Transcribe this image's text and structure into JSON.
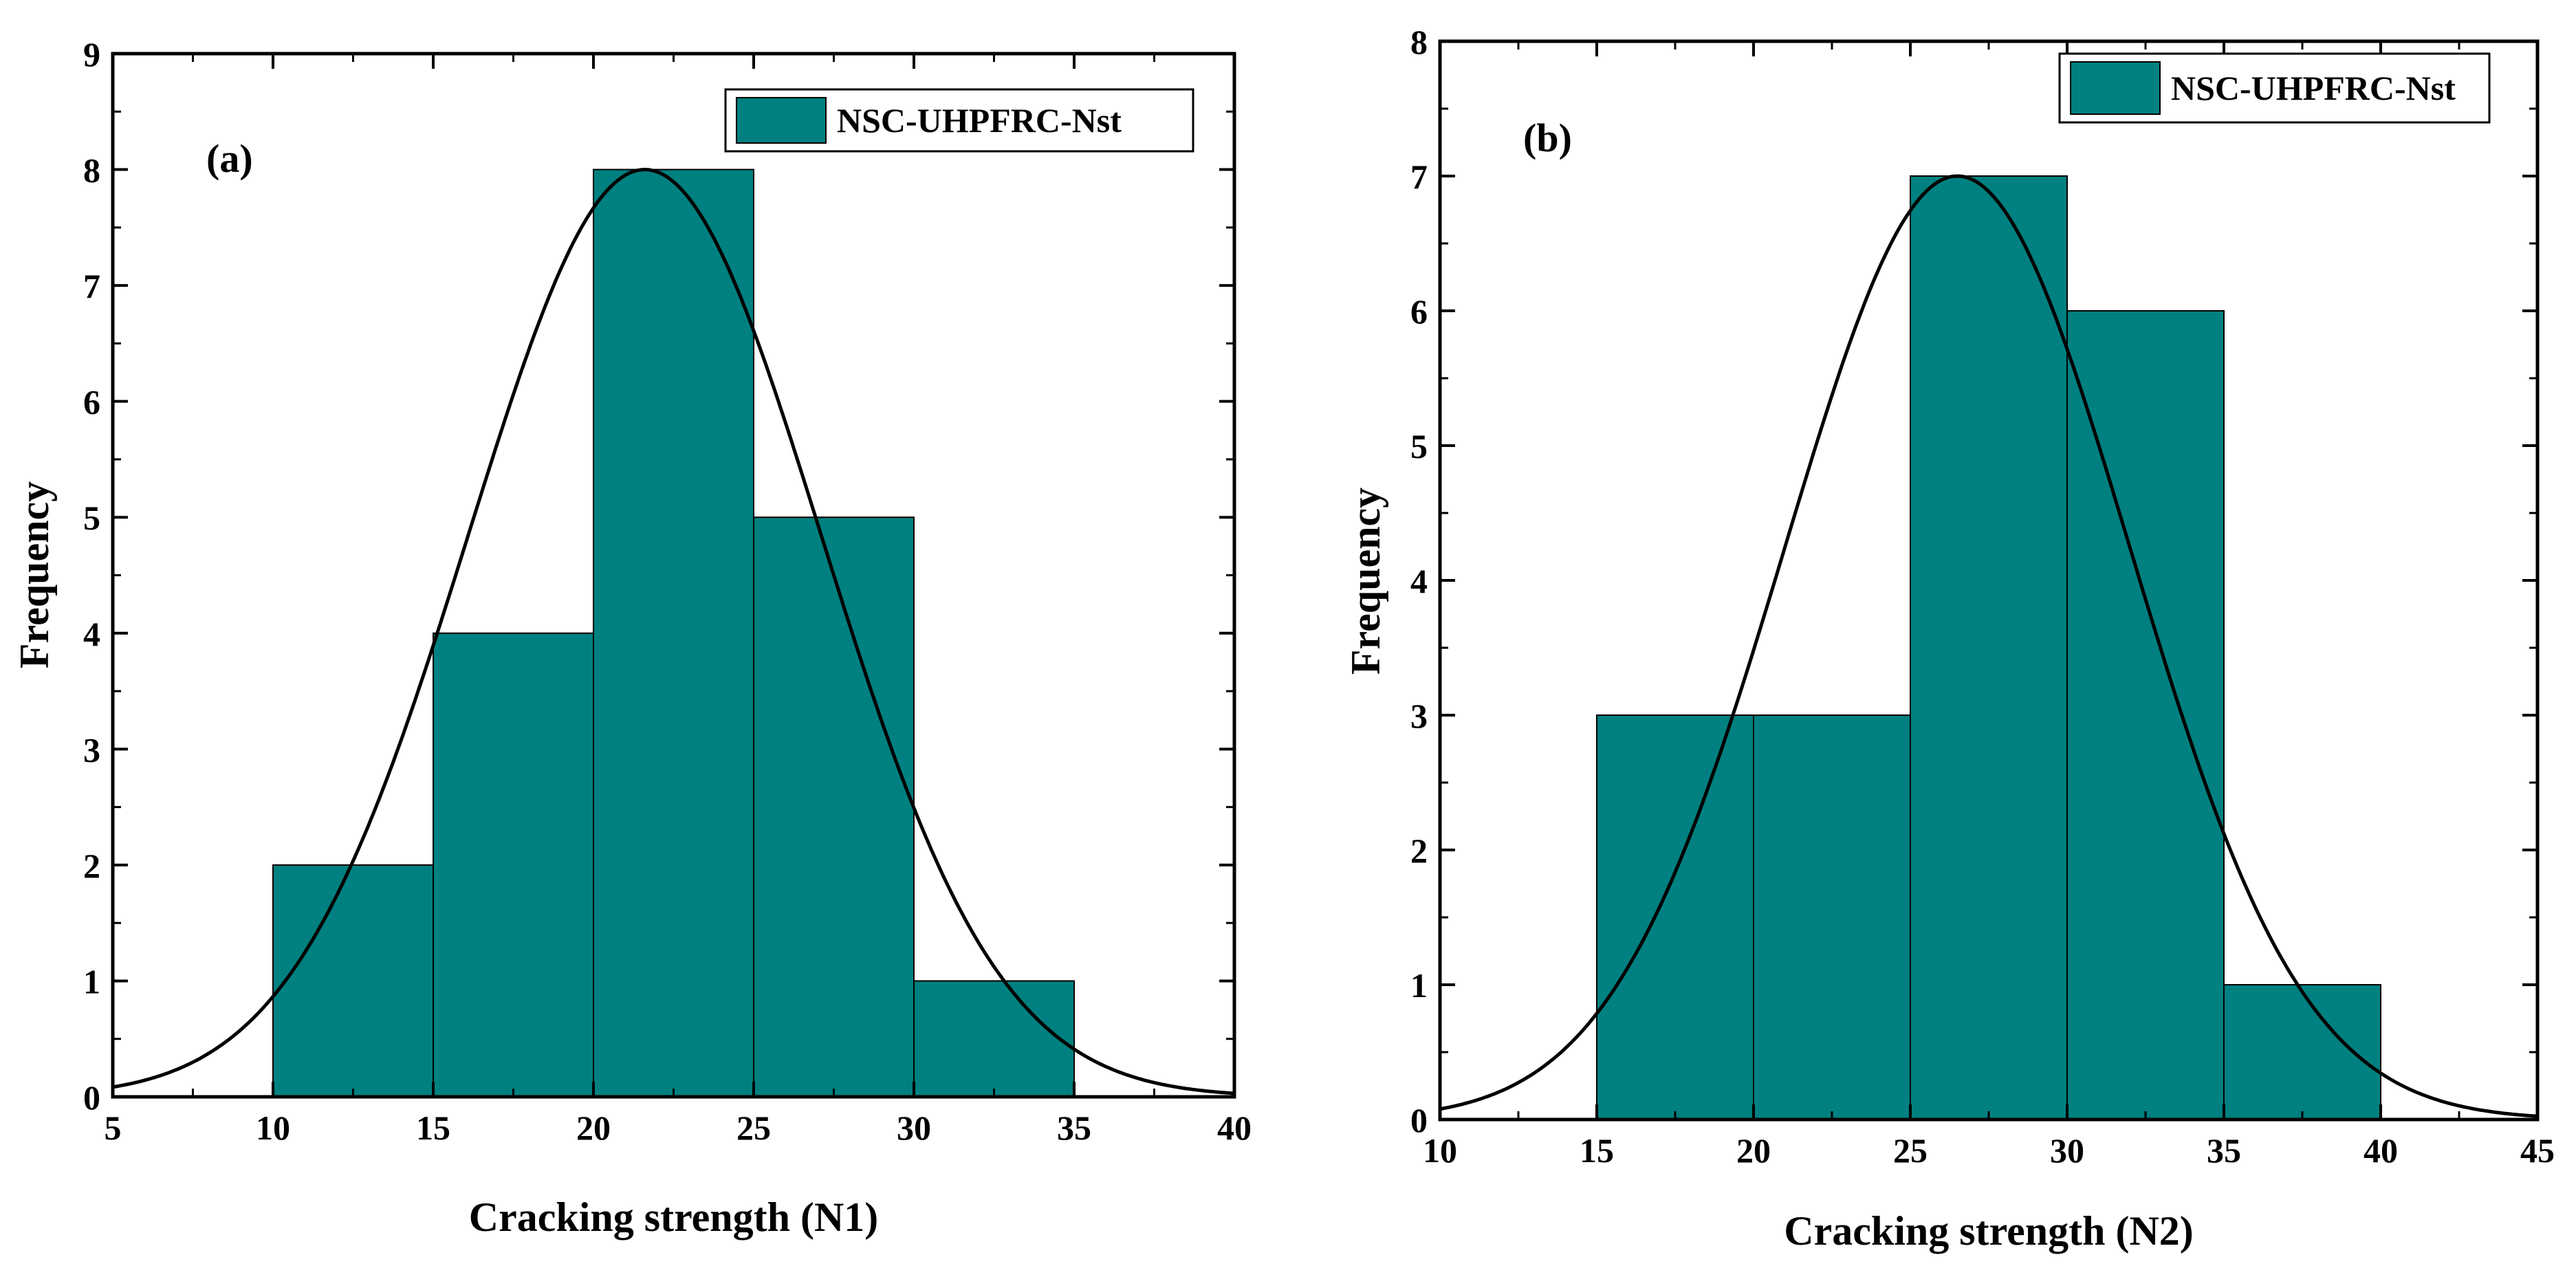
{
  "colors": {
    "bar": "#008080",
    "curve": "#000000",
    "axis": "#000000",
    "background": "#ffffff"
  },
  "chart_data": [
    {
      "type": "bar",
      "panel_label": "(a)",
      "legend": "NSC-UHPFRC-Nst",
      "legend_position": "top-right",
      "xlabel": "Cracking strength (N1)",
      "ylabel": "Frequency",
      "xlim": [
        5,
        40
      ],
      "ylim": [
        0,
        9
      ],
      "xticks": [
        5,
        10,
        15,
        20,
        25,
        30,
        35,
        40
      ],
      "yticks": [
        0,
        1,
        2,
        3,
        4,
        5,
        6,
        7,
        8,
        9
      ],
      "bins": [
        [
          10,
          15
        ],
        [
          15,
          20
        ],
        [
          20,
          25
        ],
        [
          25,
          30
        ],
        [
          30,
          35
        ]
      ],
      "values": [
        2,
        4,
        8,
        5,
        1
      ],
      "normal_curve": {
        "mean": 21.6,
        "sd": 5.5,
        "peak": 8
      },
      "grid": false
    },
    {
      "type": "bar",
      "panel_label": "(b)",
      "legend": "NSC-UHPFRC-Nst",
      "legend_position": "top-right",
      "xlabel": "Cracking strength (N2)",
      "ylabel": "Frequency",
      "xlim": [
        10,
        45
      ],
      "ylim": [
        0,
        8
      ],
      "xticks": [
        10,
        15,
        20,
        25,
        30,
        35,
        40,
        45
      ],
      "yticks": [
        0,
        1,
        2,
        3,
        4,
        5,
        6,
        7,
        8
      ],
      "bins": [
        [
          15,
          20
        ],
        [
          20,
          25
        ],
        [
          25,
          30
        ],
        [
          30,
          35
        ],
        [
          35,
          40
        ]
      ],
      "values": [
        3,
        3,
        7,
        6,
        1
      ],
      "normal_curve": {
        "mean": 26.5,
        "sd": 5.5,
        "peak": 7
      },
      "grid": false
    }
  ]
}
